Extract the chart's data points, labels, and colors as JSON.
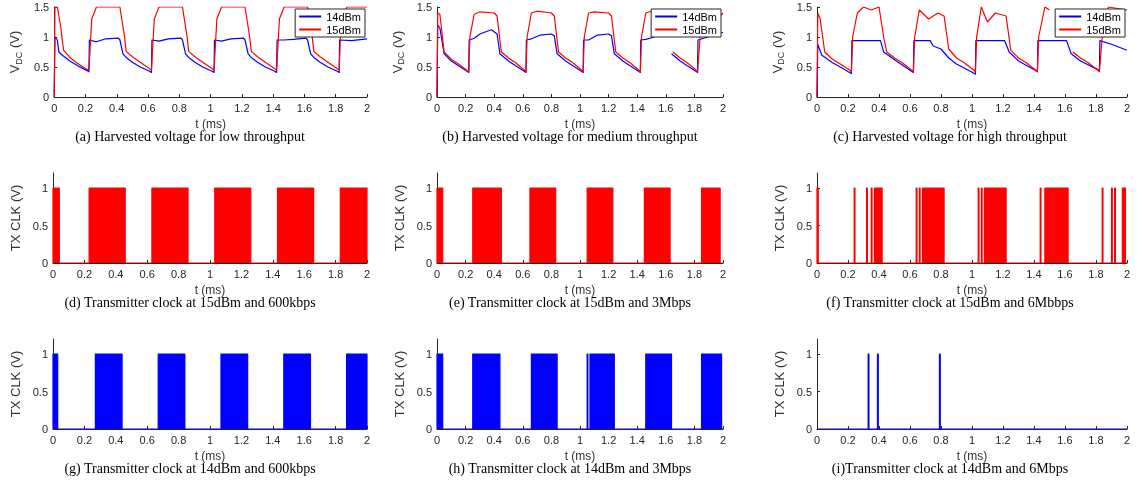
{
  "chart_data": [
    {
      "type": "line",
      "title": "(a) Harvested voltage for low throughput",
      "xlabel": "t (ms)",
      "ylabel": "V$_{DC}$ (V)",
      "xlim": [
        0,
        2
      ],
      "xticks": [
        0,
        0.2,
        0.4,
        0.6,
        0.8,
        1,
        1.2,
        1.4,
        1.6,
        1.8,
        2
      ],
      "ylim": [
        0,
        1.5
      ],
      "yticks": [
        0,
        0.5,
        1,
        1.5
      ],
      "legend": "top right",
      "marker": "none",
      "series": [
        {
          "name": "14dBm",
          "color": "#0000ff",
          "x": [
            0,
            0.005,
            0.02,
            0.03,
            0.05,
            0.1,
            0.15,
            0.21,
            0.222,
            0.225,
            0.27,
            0.33,
            0.41,
            0.42,
            0.44,
            0.46,
            0.5,
            0.55,
            0.61,
            0.622,
            0.625,
            0.67,
            0.73,
            0.81,
            0.82,
            0.84,
            0.86,
            0.9,
            0.95,
            1.01,
            1.022,
            1.025,
            1.07,
            1.13,
            1.21,
            1.22,
            1.24,
            1.26,
            1.3,
            1.35,
            1.41,
            1.422,
            1.425,
            1.47,
            1.53,
            1.61,
            1.62,
            1.64,
            1.66,
            1.7,
            1.75,
            1.81,
            1.822,
            1.825,
            1.9,
            2
          ],
          "values": [
            0,
            1.0,
            0.95,
            0.75,
            0.7,
            0.6,
            0.52,
            0.44,
            0.42,
            0.95,
            0.92,
            0.97,
            0.98,
            0.95,
            0.72,
            0.66,
            0.58,
            0.5,
            0.43,
            0.41,
            0.95,
            0.93,
            0.97,
            0.98,
            0.95,
            0.72,
            0.66,
            0.58,
            0.5,
            0.43,
            0.41,
            0.95,
            0.93,
            0.97,
            0.98,
            0.95,
            0.72,
            0.66,
            0.58,
            0.5,
            0.43,
            0.41,
            0.95,
            0.95,
            0.96,
            0.98,
            0.95,
            0.72,
            0.66,
            0.58,
            0.5,
            0.43,
            0.41,
            0.95,
            0.94,
            0.97
          ]
        },
        {
          "name": "15dBm",
          "color": "#ff0000",
          "x": [
            0,
            0.005,
            0.02,
            0.04,
            0.06,
            0.1,
            0.15,
            0.21,
            0.222,
            0.24,
            0.27,
            0.42,
            0.45,
            0.46,
            0.5,
            0.55,
            0.61,
            0.622,
            0.64,
            0.67,
            0.82,
            0.85,
            0.86,
            0.9,
            0.95,
            1.01,
            1.022,
            1.04,
            1.07,
            1.22,
            1.25,
            1.26,
            1.3,
            1.35,
            1.41,
            1.422,
            1.44,
            1.47,
            1.62,
            1.65,
            1.66,
            1.7,
            1.75,
            1.81,
            1.822,
            1.83,
            1.87,
            2
          ],
          "values": [
            0,
            1.5,
            1.5,
            1.2,
            0.78,
            0.66,
            0.56,
            0.46,
            0.45,
            1.3,
            1.5,
            1.5,
            1.0,
            0.76,
            0.67,
            0.58,
            0.47,
            0.45,
            1.3,
            1.5,
            1.5,
            1.0,
            0.76,
            0.67,
            0.58,
            0.47,
            0.45,
            1.3,
            1.5,
            1.5,
            1.0,
            0.76,
            0.67,
            0.58,
            0.47,
            0.45,
            1.3,
            1.5,
            1.5,
            1.0,
            0.76,
            0.67,
            0.58,
            0.47,
            0.45,
            1.0,
            1.5,
            1.5
          ]
        }
      ]
    },
    {
      "type": "line",
      "title": "(b) Harvested voltage for medium throughput",
      "xlabel": "t (ms)",
      "ylabel": "V$_{DC}$ (V)",
      "xlim": [
        0,
        2
      ],
      "xticks": [
        0,
        0.2,
        0.4,
        0.6,
        0.8,
        1,
        1.2,
        1.4,
        1.6,
        1.8,
        2
      ],
      "ylim": [
        0,
        1.5
      ],
      "yticks": [
        0,
        0.5,
        1,
        1.5
      ],
      "legend": "top right",
      "marker": "none",
      "series": [
        {
          "name": "14dBm",
          "color": "#0000ff",
          "x": [
            0,
            0.005,
            0.02,
            0.05,
            0.1,
            0.15,
            0.21,
            0.222,
            0.225,
            0.26,
            0.3,
            0.38,
            0.42,
            0.44,
            0.5,
            0.55,
            0.61,
            0.622,
            0.625,
            0.66,
            0.72,
            0.8,
            0.82,
            0.84,
            0.9,
            0.95,
            1.01,
            1.022,
            1.025,
            1.06,
            1.12,
            1.2,
            1.22,
            1.24,
            1.3,
            1.35,
            1.41,
            1.422,
            1.425,
            1.46,
            1.52,
            1.6,
            1.62,
            1.64,
            1.7,
            1.75,
            1.81,
            1.822,
            1.825,
            2
          ],
          "values": [
            0,
            1.2,
            1.15,
            0.72,
            0.6,
            0.52,
            0.43,
            0.41,
            0.95,
            0.98,
            1.05,
            1.12,
            1.05,
            0.72,
            0.6,
            0.52,
            0.43,
            0.41,
            0.95,
            0.97,
            1.03,
            1.05,
            1.02,
            0.72,
            0.6,
            0.52,
            0.43,
            0.41,
            0.95,
            0.95,
            1.03,
            1.05,
            1.02,
            0.72,
            0.6,
            0.52,
            0.43,
            0.41,
            0.95,
            0.96,
            1.0,
            null,
            null,
            0.72,
            0.6,
            0.52,
            0.43,
            0.41,
            0.95,
            1.08
          ]
        },
        {
          "name": "15dBm",
          "color": "#ff0000",
          "x": [
            0,
            0.005,
            0.02,
            0.05,
            0.1,
            0.15,
            0.21,
            0.222,
            0.23,
            0.26,
            0.3,
            0.4,
            0.42,
            0.45,
            0.5,
            0.55,
            0.61,
            0.622,
            0.63,
            0.66,
            0.7,
            0.8,
            0.82,
            0.85,
            0.9,
            0.95,
            1.01,
            1.022,
            1.03,
            1.06,
            1.1,
            1.2,
            1.22,
            1.25,
            1.3,
            1.35,
            1.41,
            1.422,
            1.43,
            1.46,
            1.5,
            1.6,
            1.62,
            1.65,
            1.7,
            1.75,
            1.81,
            1.822,
            1.84,
            2
          ],
          "values": [
            0,
            1.4,
            1.38,
            0.75,
            0.63,
            0.55,
            0.44,
            0.42,
            1.0,
            1.38,
            1.42,
            1.4,
            1.35,
            0.75,
            0.65,
            0.57,
            0.45,
            0.42,
            1.0,
            1.4,
            1.43,
            1.4,
            1.35,
            0.75,
            0.65,
            0.57,
            0.45,
            0.42,
            1.0,
            1.4,
            1.42,
            1.4,
            1.35,
            0.75,
            0.65,
            0.57,
            0.45,
            0.42,
            1.0,
            1.4,
            1.43,
            null,
            null,
            0.75,
            0.65,
            0.57,
            0.45,
            0.42,
            1.0,
            1.4
          ]
        }
      ]
    },
    {
      "type": "line",
      "title": "(c) Harvested voltage for high throughput",
      "xlabel": "t (ms)",
      "ylabel": "V$_{DC}$ (V)",
      "xlim": [
        0,
        2
      ],
      "xticks": [
        0,
        0.2,
        0.4,
        0.6,
        0.8,
        1,
        1.2,
        1.4,
        1.6,
        1.8,
        2
      ],
      "ylim": [
        0,
        1.5
      ],
      "yticks": [
        0,
        0.5,
        1,
        1.5
      ],
      "legend": "top right",
      "marker": "none",
      "series": [
        {
          "name": "14dBm",
          "color": "#0000ff",
          "x": [
            0,
            0.005,
            0.03,
            0.1,
            0.15,
            0.21,
            0.222,
            0.225,
            0.41,
            0.43,
            0.5,
            0.61,
            0.622,
            0.625,
            0.73,
            0.75,
            0.8,
            0.85,
            0.9,
            1.01,
            1.022,
            1.025,
            1.21,
            1.24,
            1.3,
            1.41,
            1.422,
            1.425,
            1.61,
            1.64,
            1.7,
            1.81,
            1.822,
            1.825,
            1.9,
            2
          ],
          "values": [
            0,
            0.88,
            0.7,
            0.57,
            0.5,
            0.41,
            0.39,
            0.94,
            0.94,
            0.75,
            0.62,
            0.43,
            0.41,
            0.94,
            0.94,
            0.85,
            0.8,
            0.65,
            0.55,
            0.4,
            0.38,
            0.94,
            0.94,
            0.75,
            0.6,
            0.44,
            0.42,
            0.94,
            0.94,
            0.72,
            0.6,
            0.46,
            0.44,
            0.94,
            0.88,
            0.78
          ]
        },
        {
          "name": "15dBm",
          "color": "#ff0000",
          "x": [
            0,
            0.005,
            0.02,
            0.05,
            0.1,
            0.15,
            0.21,
            0.222,
            0.23,
            0.26,
            0.3,
            0.35,
            0.4,
            0.43,
            0.45,
            0.5,
            0.55,
            0.61,
            0.622,
            0.63,
            0.66,
            0.72,
            0.78,
            0.82,
            0.85,
            0.9,
            0.95,
            1.01,
            1.022,
            1.03,
            1.06,
            1.1,
            1.15,
            1.22,
            1.25,
            1.3,
            1.35,
            1.41,
            1.422,
            1.43,
            1.47,
            1.5,
            1.6,
            1.62,
            1.65,
            1.7,
            1.75,
            1.81,
            1.822,
            1.84,
            1.88,
            2
          ],
          "values": [
            0,
            1.4,
            1.3,
            0.75,
            0.63,
            0.55,
            0.45,
            0.42,
            1.0,
            1.4,
            1.5,
            1.45,
            1.5,
            1.0,
            0.75,
            0.65,
            0.57,
            0.45,
            0.42,
            1.0,
            1.45,
            1.3,
            1.4,
            1.35,
            0.8,
            0.65,
            0.57,
            0.45,
            0.42,
            1.0,
            1.5,
            1.25,
            1.4,
            1.35,
            0.78,
            0.65,
            0.57,
            0.45,
            0.42,
            1.0,
            1.5,
            1.45,
            null,
            null,
            0.75,
            0.65,
            0.57,
            0.45,
            0.42,
            1.0,
            1.5,
            1.45
          ]
        }
      ]
    },
    {
      "type": "area",
      "title": "(d) Transmitter clock at 15dBm and 600kbps",
      "xlabel": "t (ms)",
      "ylabel": "TX CLK (V)",
      "xlim": [
        0,
        2
      ],
      "xticks": [
        0,
        0.2,
        0.4,
        0.6,
        0.8,
        1,
        1.2,
        1.4,
        1.6,
        1.8,
        2
      ],
      "ylim": [
        0,
        1.2
      ],
      "yticks": [
        0,
        0.5,
        1
      ],
      "marker": "none",
      "series": [
        {
          "color": "#ff0000",
          "x": [
            0,
            0,
            0.04,
            0.04,
            0.23,
            0.23,
            0.46,
            0.46,
            0.63,
            0.63,
            0.86,
            0.86,
            1.03,
            1.03,
            1.26,
            1.26,
            1.43,
            1.43,
            1.66,
            1.66,
            1.83,
            1.83,
            2,
            2
          ],
          "values": [
            0,
            1,
            1,
            0,
            0,
            1,
            1,
            0,
            0,
            1,
            1,
            0,
            0,
            1,
            1,
            0,
            0,
            1,
            1,
            0,
            0,
            1,
            1,
            0
          ]
        }
      ]
    },
    {
      "type": "area",
      "title": "(e) Transmitter clock at 15dBm and 3Mbps",
      "xlabel": "t (ms)",
      "ylabel": "TX CLK (V)",
      "xlim": [
        0,
        2
      ],
      "xticks": [
        0,
        0.2,
        0.4,
        0.6,
        0.8,
        1,
        1.2,
        1.4,
        1.6,
        1.8,
        2
      ],
      "ylim": [
        0,
        1.2
      ],
      "yticks": [
        0,
        0.5,
        1
      ],
      "marker": "none",
      "series": [
        {
          "color": "#ff0000",
          "x": [
            0,
            0,
            0.04,
            0.04,
            0.25,
            0.25,
            0.45,
            0.45,
            0.65,
            0.65,
            0.83,
            0.83,
            1.05,
            1.05,
            1.23,
            1.23,
            1.45,
            1.45,
            1.63,
            1.63,
            1.85,
            1.85,
            1.98,
            1.98,
            2
          ],
          "values": [
            0,
            1,
            1,
            0,
            0,
            1,
            1,
            0,
            0,
            1,
            1,
            0,
            0,
            1,
            1,
            0,
            0,
            1,
            1,
            0,
            0,
            1,
            1,
            0,
            0
          ]
        }
      ]
    },
    {
      "type": "area",
      "title": "(f) Transmitter clock at 15dBm and 6Mbbps",
      "xlabel": "t (ms)",
      "ylabel": "TX CLK (V)",
      "xlim": [
        0,
        2
      ],
      "xticks": [
        0,
        0.2,
        0.4,
        0.6,
        0.8,
        1,
        1.2,
        1.4,
        1.6,
        1.8,
        2
      ],
      "ylim": [
        0,
        1.2
      ],
      "yticks": [
        0,
        0.5,
        1
      ],
      "marker": "none",
      "series": [
        {
          "color": "#ff0000",
          "x": [
            0,
            0,
            0.008,
            0.008,
            0.24,
            0.24,
            0.245,
            0.245,
            0.32,
            0.32,
            0.325,
            0.325,
            0.35,
            0.35,
            0.355,
            0.355,
            0.37,
            0.37,
            0.375,
            0.375,
            0.38,
            0.38,
            0.42,
            0.42,
            0.64,
            0.64,
            0.645,
            0.645,
            0.66,
            0.66,
            0.665,
            0.665,
            0.68,
            0.68,
            0.82,
            0.82,
            1.04,
            1.04,
            1.045,
            1.045,
            1.06,
            1.06,
            1.065,
            1.065,
            1.08,
            1.08,
            1.22,
            1.22,
            1.44,
            1.44,
            1.445,
            1.445,
            1.47,
            1.47,
            1.62,
            1.62,
            1.84,
            1.84,
            1.845,
            1.845,
            1.9,
            1.9,
            1.905,
            1.905,
            1.92,
            1.92,
            1.925,
            1.925,
            1.97,
            1.97,
            1.99,
            1.99,
            2
          ],
          "values": [
            0,
            1,
            1,
            0,
            0,
            1,
            1,
            0,
            0,
            1,
            1,
            0,
            0,
            1,
            1,
            0,
            0,
            1,
            1,
            0,
            0,
            1,
            1,
            0,
            0,
            1,
            1,
            0,
            0,
            1,
            1,
            0,
            0,
            1,
            1,
            0,
            0,
            1,
            1,
            0,
            0,
            1,
            1,
            0,
            0,
            1,
            1,
            0,
            0,
            1,
            1,
            0,
            0,
            1,
            1,
            0,
            0,
            1,
            1,
            0,
            0,
            1,
            1,
            0,
            0,
            1,
            1,
            0,
            0,
            1,
            1,
            0,
            0
          ]
        }
      ]
    },
    {
      "type": "area",
      "title": "(g) Transmitter clock at 14dBm and 600kbps",
      "xlabel": "t (ms)",
      "ylabel": "TX CLK (V)",
      "xlim": [
        0,
        2
      ],
      "xticks": [
        0,
        0.2,
        0.4,
        0.6,
        0.8,
        1,
        1.2,
        1.4,
        1.6,
        1.8,
        2
      ],
      "ylim": [
        0,
        1.2
      ],
      "yticks": [
        0,
        0.5,
        1
      ],
      "marker": "none",
      "series": [
        {
          "color": "#0000ff",
          "x": [
            0,
            0,
            0.03,
            0.03,
            0.27,
            0.27,
            0.44,
            0.44,
            0.67,
            0.67,
            0.84,
            0.84,
            1.07,
            1.07,
            1.24,
            1.24,
            1.47,
            1.47,
            1.64,
            1.64,
            1.87,
            1.87,
            2,
            2
          ],
          "values": [
            0,
            1,
            1,
            0,
            0,
            1,
            1,
            0,
            0,
            1,
            1,
            0,
            0,
            1,
            1,
            0,
            0,
            1,
            1,
            0,
            0,
            1,
            1,
            0
          ]
        }
      ]
    },
    {
      "type": "area",
      "title": "(h) Transmitter clock at 14dBm and 3Mbps",
      "xlabel": "t (ms)",
      "ylabel": "TX CLK (V)",
      "xlim": [
        0,
        2
      ],
      "xticks": [
        0,
        0.2,
        0.4,
        0.6,
        0.8,
        1,
        1.2,
        1.4,
        1.6,
        1.8,
        2
      ],
      "ylim": [
        0,
        1.2
      ],
      "yticks": [
        0,
        0.5,
        1
      ],
      "marker": "none",
      "series": [
        {
          "color": "#0000ff",
          "x": [
            0,
            0,
            0.04,
            0.04,
            0.25,
            0.25,
            0.44,
            0.44,
            0.66,
            0.66,
            0.84,
            0.84,
            1.05,
            1.05,
            1.055,
            1.055,
            1.07,
            1.07,
            1.24,
            1.24,
            1.46,
            1.46,
            1.64,
            1.64,
            1.85,
            1.85,
            1.99,
            1.99,
            2
          ],
          "values": [
            0,
            1,
            1,
            0,
            0,
            1,
            1,
            0,
            0,
            1,
            1,
            0,
            0,
            1,
            1,
            0,
            0,
            1,
            1,
            0,
            0,
            1,
            1,
            0,
            0,
            1,
            1,
            0,
            0
          ]
        }
      ]
    },
    {
      "type": "area",
      "title": "(i)Transmitter clock at 14dBm and 6Mbps",
      "xlabel": "t (ms)",
      "ylabel": "TX CLK (V)",
      "xlim": [
        0,
        2
      ],
      "xticks": [
        0,
        0.2,
        0.4,
        0.6,
        0.8,
        1,
        1.2,
        1.4,
        1.6,
        1.8,
        2
      ],
      "ylim": [
        0,
        1.2
      ],
      "yticks": [
        0,
        0.5,
        1
      ],
      "marker": "none",
      "series": [
        {
          "color": "#0000ff",
          "x": [
            0,
            0.33,
            0.33,
            0.335,
            0.335,
            0.39,
            0.39,
            0.395,
            0.395,
            0.79,
            0.79,
            0.795,
            0.795,
            2
          ],
          "values": [
            0,
            0,
            1,
            1,
            0,
            0,
            1,
            1,
            0,
            0,
            1,
            1,
            0,
            0
          ]
        }
      ]
    }
  ]
}
